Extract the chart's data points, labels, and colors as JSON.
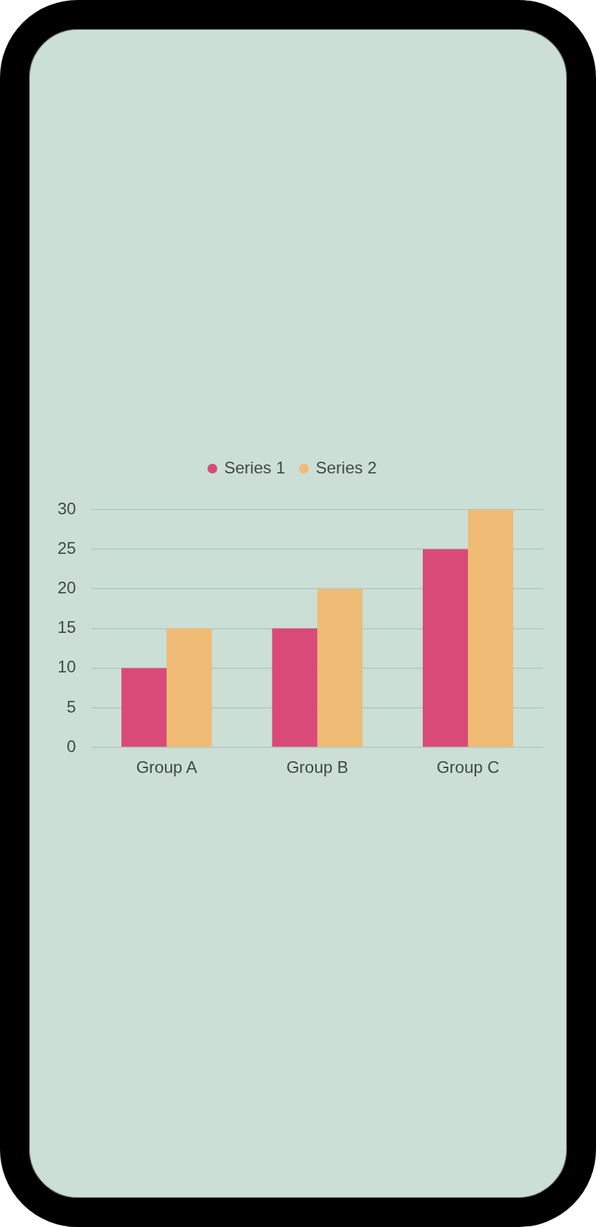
{
  "chart_data": {
    "type": "bar",
    "categories": [
      "Group A",
      "Group B",
      "Group C"
    ],
    "series": [
      {
        "name": "Series 1",
        "color": "#d94a78",
        "values": [
          10,
          15,
          25
        ]
      },
      {
        "name": "Series 2",
        "color": "#f0bb74",
        "values": [
          15,
          20,
          30
        ]
      }
    ],
    "ylim": [
      0,
      30
    ],
    "yticks": [
      0,
      5,
      10,
      15,
      20,
      25,
      30
    ],
    "grid": "y",
    "legend": "top"
  }
}
